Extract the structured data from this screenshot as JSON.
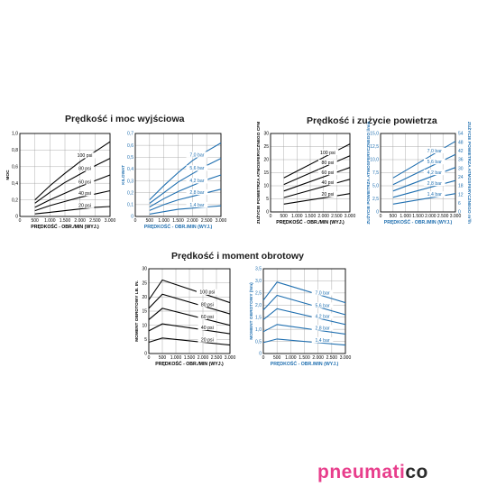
{
  "brand": {
    "main": "pneumati",
    "co": "co",
    "colors": {
      "main": "#e83e8c",
      "co": "#2b2b2b"
    }
  },
  "sections": [
    {
      "title": "Prędkość i moc wyjściowa"
    },
    {
      "title": "Prędkość i zużycie powietrza"
    },
    {
      "title": "Prędkość i moment obrotowy"
    }
  ],
  "colors": {
    "imperial": "#000000",
    "metric": "#1f6fb0"
  },
  "chart_data": [
    {
      "type": "line",
      "ylabel": "MOC",
      "xlabel": "PRĘDKOŚĆ - OBR./MIN (WYJ.)",
      "xlim": [
        0,
        3000
      ],
      "ylim": [
        0,
        1.0
      ],
      "xticks": [
        "0",
        "500",
        "1.000",
        "1.500",
        "2.000",
        "2.500",
        "3.000"
      ],
      "yticks": [
        "0",
        "0,2",
        "0,4",
        "0,6",
        "0,8",
        "1,0"
      ],
      "grid": true,
      "color": "#000000",
      "series": [
        {
          "name": "100 psi",
          "x": [
            500,
            1000,
            1500,
            2000,
            2500,
            3000
          ],
          "y": [
            0.2,
            0.37,
            0.52,
            0.66,
            0.78,
            0.9
          ]
        },
        {
          "name": "80 psi",
          "x": [
            500,
            1000,
            1500,
            2000,
            2500,
            3000
          ],
          "y": [
            0.16,
            0.29,
            0.41,
            0.51,
            0.61,
            0.7
          ]
        },
        {
          "name": "60 psi",
          "x": [
            500,
            1000,
            1500,
            2000,
            2500,
            3000
          ],
          "y": [
            0.11,
            0.2,
            0.28,
            0.36,
            0.43,
            0.5
          ]
        },
        {
          "name": "40 psi",
          "x": [
            500,
            1000,
            1500,
            2000,
            2500,
            3000
          ],
          "y": [
            0.07,
            0.13,
            0.18,
            0.23,
            0.27,
            0.31
          ]
        },
        {
          "name": "20 psi",
          "x": [
            500,
            1000,
            1500,
            2000,
            2500,
            3000
          ],
          "y": [
            0.03,
            0.05,
            0.07,
            0.09,
            0.11,
            0.12
          ]
        }
      ]
    },
    {
      "type": "line",
      "ylabel": "KILOWAT",
      "xlabel": "PRĘDKOŚĆ - OBR./MIN (WYJ.)",
      "xlim": [
        0,
        3000
      ],
      "ylim": [
        0,
        0.7
      ],
      "xticks": [
        "0",
        "500",
        "1.000",
        "1.500",
        "2.000",
        "2.500",
        "3.000"
      ],
      "yticks": [
        "0",
        "0,1",
        "0,2",
        "0,3",
        "0,4",
        "0,5",
        "0,6",
        "0,7"
      ],
      "grid": true,
      "color": "#1f6fb0",
      "series": [
        {
          "name": "7,0 bar",
          "x": [
            500,
            1000,
            1500,
            2000,
            2500,
            3000
          ],
          "y": [
            0.14,
            0.26,
            0.37,
            0.47,
            0.55,
            0.62
          ]
        },
        {
          "name": "5,6 bar",
          "x": [
            500,
            1000,
            1500,
            2000,
            2500,
            3000
          ],
          "y": [
            0.11,
            0.2,
            0.29,
            0.36,
            0.43,
            0.49
          ]
        },
        {
          "name": "4,2 bar",
          "x": [
            500,
            1000,
            1500,
            2000,
            2500,
            3000
          ],
          "y": [
            0.08,
            0.15,
            0.21,
            0.26,
            0.31,
            0.35
          ]
        },
        {
          "name": "2,8 bar",
          "x": [
            500,
            1000,
            1500,
            2000,
            2500,
            3000
          ],
          "y": [
            0.05,
            0.1,
            0.14,
            0.17,
            0.2,
            0.23
          ]
        },
        {
          "name": "1,4 bar",
          "x": [
            500,
            1000,
            1500,
            2000,
            2500,
            3000
          ],
          "y": [
            0.02,
            0.04,
            0.06,
            0.07,
            0.08,
            0.09
          ]
        }
      ]
    },
    {
      "type": "line",
      "ylabel": "ZUŻYCIE POWIETRZA ATMOSFERYCZNEGO CFM",
      "xlabel": "PRĘDKOŚĆ - OBR./MIN (WYJ.)",
      "xlim": [
        0,
        3000
      ],
      "ylim": [
        0,
        30
      ],
      "xticks": [
        "0",
        "500",
        "1.000",
        "1.500",
        "2.000",
        "2.500",
        "3.000"
      ],
      "yticks": [
        "0",
        "5",
        "10",
        "15",
        "20",
        "25",
        "30"
      ],
      "grid": true,
      "color": "#000000",
      "series": [
        {
          "name": "100 psi",
          "x": [
            500,
            3000
          ],
          "y": [
            13,
            26
          ]
        },
        {
          "name": "80 psi",
          "x": [
            500,
            3000
          ],
          "y": [
            10.5,
            21.5
          ]
        },
        {
          "name": "60 psi",
          "x": [
            500,
            3000
          ],
          "y": [
            8,
            17
          ]
        },
        {
          "name": "40 psi",
          "x": [
            500,
            3000
          ],
          "y": [
            5.5,
            12.5
          ]
        },
        {
          "name": "20 psi",
          "x": [
            500,
            3000
          ],
          "y": [
            3,
            7
          ]
        }
      ]
    },
    {
      "type": "line",
      "ylabel": "ZUŻYCIE POWIETRZA ATMOSFERYCZNEGO l/min",
      "ylabel_right": "ZUŻYCIE POWIETRZA ATMOSFERYCZNEGO m³/h",
      "xlabel": "PRĘDKOŚĆ - OBR./MIN (WYJ.)",
      "xlim": [
        0,
        3000
      ],
      "ylim": [
        0,
        15
      ],
      "ylim_right": [
        0,
        54
      ],
      "xticks": [
        "0",
        "500",
        "1.000",
        "1.500",
        "2.000",
        "2.500",
        "3.000"
      ],
      "yticks": [
        "0",
        "2,5",
        "5,0",
        "7,5",
        "10,0",
        "12,5",
        "15,0"
      ],
      "yticks_right": [
        "0",
        "6",
        "12",
        "18",
        "24",
        "30",
        "36",
        "42",
        "48",
        "54"
      ],
      "grid": true,
      "color": "#1f6fb0",
      "series": [
        {
          "name": "7,0 bar",
          "x": [
            500,
            3000
          ],
          "y": [
            6.5,
            13.5
          ]
        },
        {
          "name": "5,6 bar",
          "x": [
            500,
            3000
          ],
          "y": [
            5.2,
            11
          ]
        },
        {
          "name": "4,2 bar",
          "x": [
            500,
            3000
          ],
          "y": [
            4,
            8.5
          ]
        },
        {
          "name": "2,8 bar",
          "x": [
            500,
            3000
          ],
          "y": [
            2.8,
            6
          ]
        },
        {
          "name": "1,4 bar",
          "x": [
            500,
            3000
          ],
          "y": [
            1.5,
            3.5
          ]
        }
      ]
    },
    {
      "type": "line",
      "ylabel": "MOMENT OBROTOWY LB. IN.",
      "xlabel": "PRĘDKOŚĆ - OBR./MIN (WYJ.)",
      "xlim": [
        0,
        3000
      ],
      "ylim": [
        0,
        30
      ],
      "xticks": [
        "0",
        "500",
        "1.000",
        "1.500",
        "2.000",
        "2.500",
        "3.000"
      ],
      "yticks": [
        "0",
        "5",
        "10",
        "15",
        "20",
        "25",
        "30"
      ],
      "grid": true,
      "color": "#000000",
      "series": [
        {
          "name": "100 psi",
          "x": [
            0,
            500,
            3000
          ],
          "y": [
            19,
            26,
            18
          ]
        },
        {
          "name": "80 psi",
          "x": [
            0,
            500,
            3000
          ],
          "y": [
            16,
            21,
            14
          ]
        },
        {
          "name": "60 psi",
          "x": [
            0,
            500,
            3000
          ],
          "y": [
            12,
            16,
            10
          ]
        },
        {
          "name": "40 psi",
          "x": [
            0,
            500,
            3000
          ],
          "y": [
            8,
            10.5,
            7
          ]
        },
        {
          "name": "20 psi",
          "x": [
            0,
            500,
            3000
          ],
          "y": [
            4,
            5.5,
            3
          ]
        }
      ]
    },
    {
      "type": "line",
      "ylabel": "MOMENT OBROTOWY (Nm)",
      "xlabel": "PRĘDKOŚĆ - OBR./MIN (WYJ.)",
      "xlim": [
        0,
        3000
      ],
      "ylim": [
        0,
        3.5
      ],
      "xticks": [
        "0",
        "500",
        "1.000",
        "1.500",
        "2.000",
        "2.500",
        "3.000"
      ],
      "yticks": [
        "0",
        "0,5",
        "1,0",
        "1,5",
        "2,0",
        "2,5",
        "3,0",
        "3,5"
      ],
      "grid": true,
      "color": "#1f6fb0",
      "series": [
        {
          "name": "7,0 bar",
          "x": [
            0,
            500,
            3000
          ],
          "y": [
            2.2,
            2.95,
            2.1
          ]
        },
        {
          "name": "5,6 bar",
          "x": [
            0,
            500,
            3000
          ],
          "y": [
            1.8,
            2.4,
            1.6
          ]
        },
        {
          "name": "4,2 bar",
          "x": [
            0,
            500,
            3000
          ],
          "y": [
            1.4,
            1.85,
            1.2
          ]
        },
        {
          "name": "2,8 bar",
          "x": [
            0,
            500,
            3000
          ],
          "y": [
            0.9,
            1.2,
            0.8
          ]
        },
        {
          "name": "1,4 bar",
          "x": [
            0,
            500,
            3000
          ],
          "y": [
            0.45,
            0.6,
            0.35
          ]
        }
      ]
    }
  ]
}
